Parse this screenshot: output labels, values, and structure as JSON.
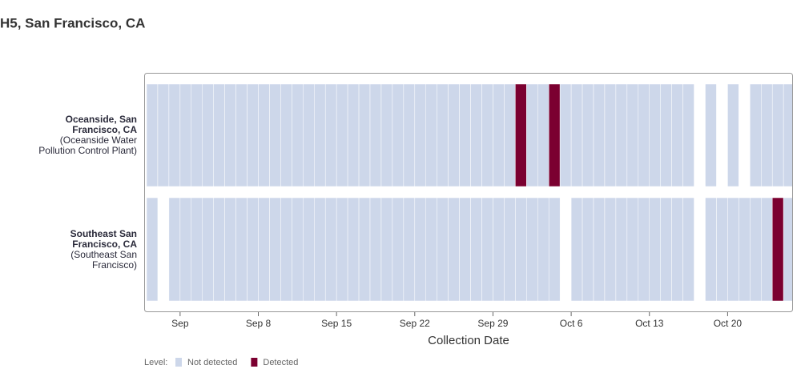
{
  "chart_data": {
    "type": "heatmap",
    "title": "H5, San Francisco, CA",
    "x_label": "Collection Date",
    "legend_title": "Level:",
    "levels": [
      {
        "name": "Not detected",
        "color": "#cdd7ea"
      },
      {
        "name": "Detected",
        "color": "#7b0030"
      }
    ],
    "x": [
      "Aug 29",
      "Aug 30",
      "Aug 31",
      "Sep 1",
      "Sep 2",
      "Sep 3",
      "Sep 4",
      "Sep 5",
      "Sep 6",
      "Sep 7",
      "Sep 8",
      "Sep 9",
      "Sep 10",
      "Sep 11",
      "Sep 12",
      "Sep 13",
      "Sep 14",
      "Sep 15",
      "Sep 16",
      "Sep 17",
      "Sep 18",
      "Sep 19",
      "Sep 20",
      "Sep 21",
      "Sep 22",
      "Sep 23",
      "Sep 24",
      "Sep 25",
      "Sep 26",
      "Sep 27",
      "Sep 28",
      "Sep 29",
      "Sep 30",
      "Oct 1",
      "Oct 2",
      "Oct 3",
      "Oct 4",
      "Oct 5",
      "Oct 6",
      "Oct 7",
      "Oct 8",
      "Oct 9",
      "Oct 10",
      "Oct 11",
      "Oct 12",
      "Oct 13",
      "Oct 14",
      "Oct 15",
      "Oct 16",
      "Oct 17",
      "Oct 18",
      "Oct 19",
      "Oct 20",
      "Oct 21",
      "Oct 22",
      "Oct 23",
      "Oct 24",
      "Oct 25"
    ],
    "xticks": [
      {
        "value": "Sep 1",
        "label": "Sep"
      },
      "Sep 8",
      "Sep 15",
      "Sep 22",
      "Sep 29",
      "Oct 6",
      "Oct 13",
      "Oct 20"
    ],
    "series": [
      {
        "name": "Oceanside, San Francisco, CA",
        "detail": "(Oceanside Water Pollution Control Plant)",
        "values": [
          0,
          0,
          0,
          0,
          0,
          0,
          0,
          0,
          0,
          0,
          0,
          0,
          0,
          0,
          0,
          0,
          0,
          0,
          0,
          0,
          0,
          0,
          0,
          0,
          0,
          0,
          0,
          0,
          0,
          0,
          0,
          0,
          0,
          1,
          0,
          0,
          1,
          0,
          0,
          0,
          0,
          0,
          0,
          0,
          0,
          0,
          0,
          0,
          0,
          null,
          0,
          null,
          0,
          null,
          0,
          0,
          0,
          0
        ]
      },
      {
        "name": "Southeast San Francisco, CA",
        "detail": "(Southeast San Francisco)",
        "values": [
          0,
          null,
          0,
          0,
          0,
          0,
          0,
          0,
          0,
          0,
          0,
          0,
          0,
          0,
          0,
          0,
          0,
          0,
          0,
          0,
          0,
          0,
          0,
          0,
          0,
          0,
          0,
          0,
          0,
          0,
          0,
          0,
          0,
          0,
          0,
          0,
          0,
          null,
          0,
          0,
          0,
          0,
          0,
          0,
          0,
          0,
          0,
          0,
          0,
          null,
          0,
          0,
          0,
          0,
          0,
          0,
          1,
          0
        ]
      }
    ]
  }
}
